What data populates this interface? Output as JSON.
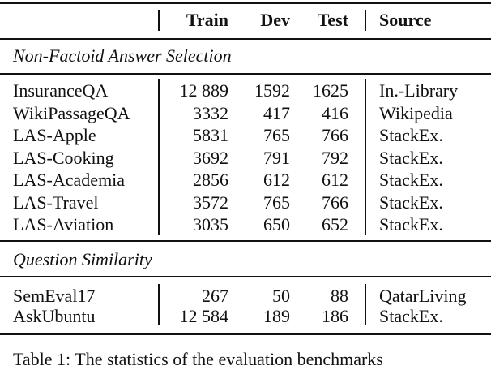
{
  "header": {
    "train": "Train",
    "dev": "Dev",
    "test": "Test",
    "source": "Source"
  },
  "sections": [
    {
      "title": "Non-Factoid Answer Selection",
      "rows": [
        {
          "name": "InsuranceQA",
          "train": "12 889",
          "dev": "1592",
          "test": "1625",
          "source": "In.-Library"
        },
        {
          "name": "WikiPassageQA",
          "train": "3332",
          "dev": "417",
          "test": "416",
          "source": "Wikipedia"
        },
        {
          "name": "LAS-Apple",
          "train": "5831",
          "dev": "765",
          "test": "766",
          "source": "StackEx."
        },
        {
          "name": "LAS-Cooking",
          "train": "3692",
          "dev": "791",
          "test": "792",
          "source": "StackEx."
        },
        {
          "name": "LAS-Academia",
          "train": "2856",
          "dev": "612",
          "test": "612",
          "source": "StackEx."
        },
        {
          "name": "LAS-Travel",
          "train": "3572",
          "dev": "765",
          "test": "766",
          "source": "StackEx."
        },
        {
          "name": "LAS-Aviation",
          "train": "3035",
          "dev": "650",
          "test": "652",
          "source": "StackEx."
        }
      ]
    },
    {
      "title": "Question Similarity",
      "rows": [
        {
          "name": "SemEval17",
          "train": "267",
          "dev": "50",
          "test": "88",
          "source": "QatarLiving"
        },
        {
          "name": "AskUbuntu",
          "train": "12 584",
          "dev": "189",
          "test": "186",
          "source": "StackEx."
        }
      ]
    }
  ],
  "caption": "Table 1: The statistics of the evaluation benchmarks"
}
